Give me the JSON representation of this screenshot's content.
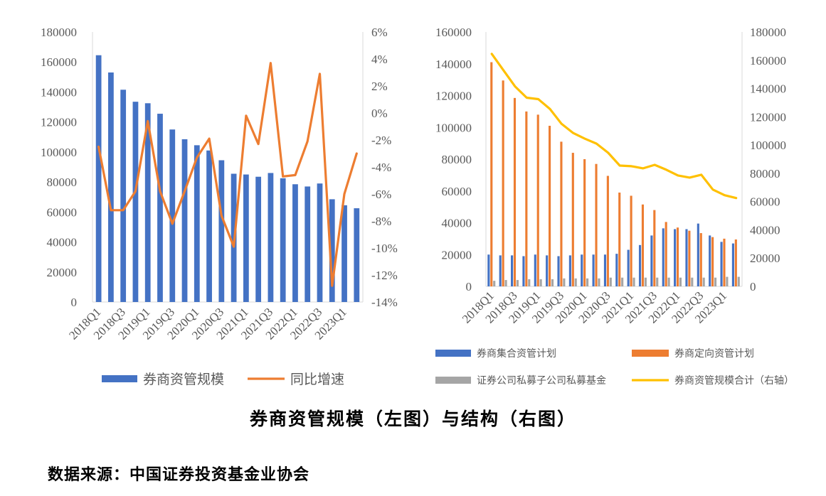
{
  "chart_data": [
    {
      "type": "bar+line",
      "title": "",
      "categories": [
        "2018Q1",
        "2018Q2",
        "2018Q3",
        "2018Q4",
        "2019Q1",
        "2019Q2",
        "2019Q3",
        "2019Q4",
        "2020Q1",
        "2020Q2",
        "2020Q3",
        "2020Q4",
        "2021Q1",
        "2021Q2",
        "2021Q3",
        "2021Q4",
        "2022Q1",
        "2022Q2",
        "2022Q3",
        "2022Q4",
        "2023Q1",
        "2023Q2"
      ],
      "x_tick_labels": [
        "2018Q1",
        "2018Q3",
        "2019Q1",
        "2019Q3",
        "2020Q1",
        "2020Q3",
        "2021Q1",
        "2021Q3",
        "2022Q1",
        "2022Q3",
        "2023Q1"
      ],
      "y_left": {
        "min": 0,
        "max": 180000,
        "step": 20000,
        "tick_labels": [
          "0",
          "20000",
          "40000",
          "60000",
          "80000",
          "100000",
          "120000",
          "140000",
          "160000",
          "180000"
        ]
      },
      "y_right": {
        "min": -14,
        "max": 6,
        "step": 2,
        "tick_labels": [
          "-14%",
          "-12%",
          "-10%",
          "-8%",
          "-6%",
          "-4%",
          "-2%",
          "0%",
          "2%",
          "4%",
          "6%"
        ]
      },
      "series": [
        {
          "name": "券商资管规模",
          "type": "bar",
          "axis": "left",
          "color": "#4472C4",
          "values": [
            164500,
            153000,
            141500,
            133500,
            132500,
            125500,
            115000,
            108500,
            104500,
            101000,
            94500,
            85500,
            85000,
            83500,
            86000,
            82500,
            78500,
            77000,
            79000,
            68500,
            64500,
            62500
          ]
        },
        {
          "name": "同比增速",
          "type": "line",
          "axis": "right",
          "color": "#ED7D31",
          "values": [
            -2.5,
            -7.2,
            -7.2,
            -5.8,
            -0.6,
            -5.8,
            -8.2,
            -5.8,
            -3.3,
            -1.9,
            -7.6,
            -9.9,
            -0.2,
            -2.3,
            3.7,
            -4.7,
            -4.6,
            -2.1,
            2.9,
            -12.8,
            -6.0,
            -3.0
          ]
        }
      ],
      "legend": [
        "券商资管规模",
        "同比增速"
      ],
      "legend_position": "bottom"
    },
    {
      "type": "bar+line",
      "title": "",
      "categories": [
        "2018Q1",
        "2018Q2",
        "2018Q3",
        "2018Q4",
        "2019Q1",
        "2019Q2",
        "2019Q3",
        "2019Q4",
        "2020Q1",
        "2020Q2",
        "2020Q3",
        "2020Q4",
        "2021Q1",
        "2021Q2",
        "2021Q3",
        "2021Q4",
        "2022Q1",
        "2022Q2",
        "2022Q3",
        "2022Q4",
        "2023Q1",
        "2023Q2"
      ],
      "x_tick_labels": [
        "2018Q1",
        "2018Q3",
        "2019Q1",
        "2019Q3",
        "2020Q1",
        "2020Q3",
        "2021Q1",
        "2021Q3",
        "2022Q1",
        "2022Q3",
        "2023Q1"
      ],
      "y_left": {
        "min": 0,
        "max": 160000,
        "step": 20000,
        "tick_labels": [
          "0",
          "20000",
          "40000",
          "60000",
          "80000",
          "100000",
          "120000",
          "140000",
          "160000"
        ]
      },
      "y_right": {
        "min": 0,
        "max": 180000,
        "step": 20000,
        "tick_labels": [
          "0",
          "20000",
          "40000",
          "60000",
          "80000",
          "100000",
          "120000",
          "140000",
          "160000",
          "180000"
        ]
      },
      "series": [
        {
          "name": "券商集合资管计划",
          "type": "bar",
          "axis": "left",
          "color": "#4472C4",
          "values": [
            20000,
            19500,
            19500,
            19000,
            20000,
            19500,
            19000,
            19500,
            20000,
            20000,
            20000,
            20500,
            23000,
            26000,
            32000,
            36500,
            36000,
            36000,
            39500,
            32000,
            28000,
            27000
          ]
        },
        {
          "name": "券商定向资管计划",
          "type": "bar",
          "axis": "left",
          "color": "#ED7D31",
          "values": [
            141000,
            129500,
            118500,
            110000,
            108000,
            101000,
            91000,
            84000,
            80000,
            77000,
            69500,
            59000,
            57000,
            51500,
            48000,
            40500,
            37000,
            35000,
            33500,
            31000,
            30000,
            29500
          ]
        },
        {
          "name": "证券公司私募子公司私募基金",
          "type": "bar",
          "axis": "left",
          "color": "#A5A5A5",
          "values": [
            3500,
            4000,
            4000,
            4500,
            4500,
            4500,
            5000,
            5000,
            5000,
            5000,
            5500,
            5500,
            5500,
            5500,
            5500,
            5500,
            5500,
            5500,
            5500,
            5500,
            6000,
            6000
          ]
        },
        {
          "name": "券商资管规模合计（右轴）",
          "type": "line",
          "axis": "right",
          "color": "#FFC000",
          "values": [
            164500,
            153000,
            141500,
            133500,
            132500,
            125500,
            115000,
            108500,
            104500,
            101000,
            94500,
            85500,
            85000,
            83500,
            86000,
            82500,
            78500,
            77000,
            79000,
            68500,
            64500,
            62500
          ]
        }
      ],
      "legend": [
        "券商集合资管计划",
        "券商定向资管计划",
        "证券公司私募子公司私募基金",
        "券商资管规模合计（右轴）"
      ],
      "legend_position": "bottom"
    }
  ],
  "figure_title": "券商资管规模（左图）与结构（右图）",
  "source_note": "数据来源：中国证券投资基金业协会"
}
